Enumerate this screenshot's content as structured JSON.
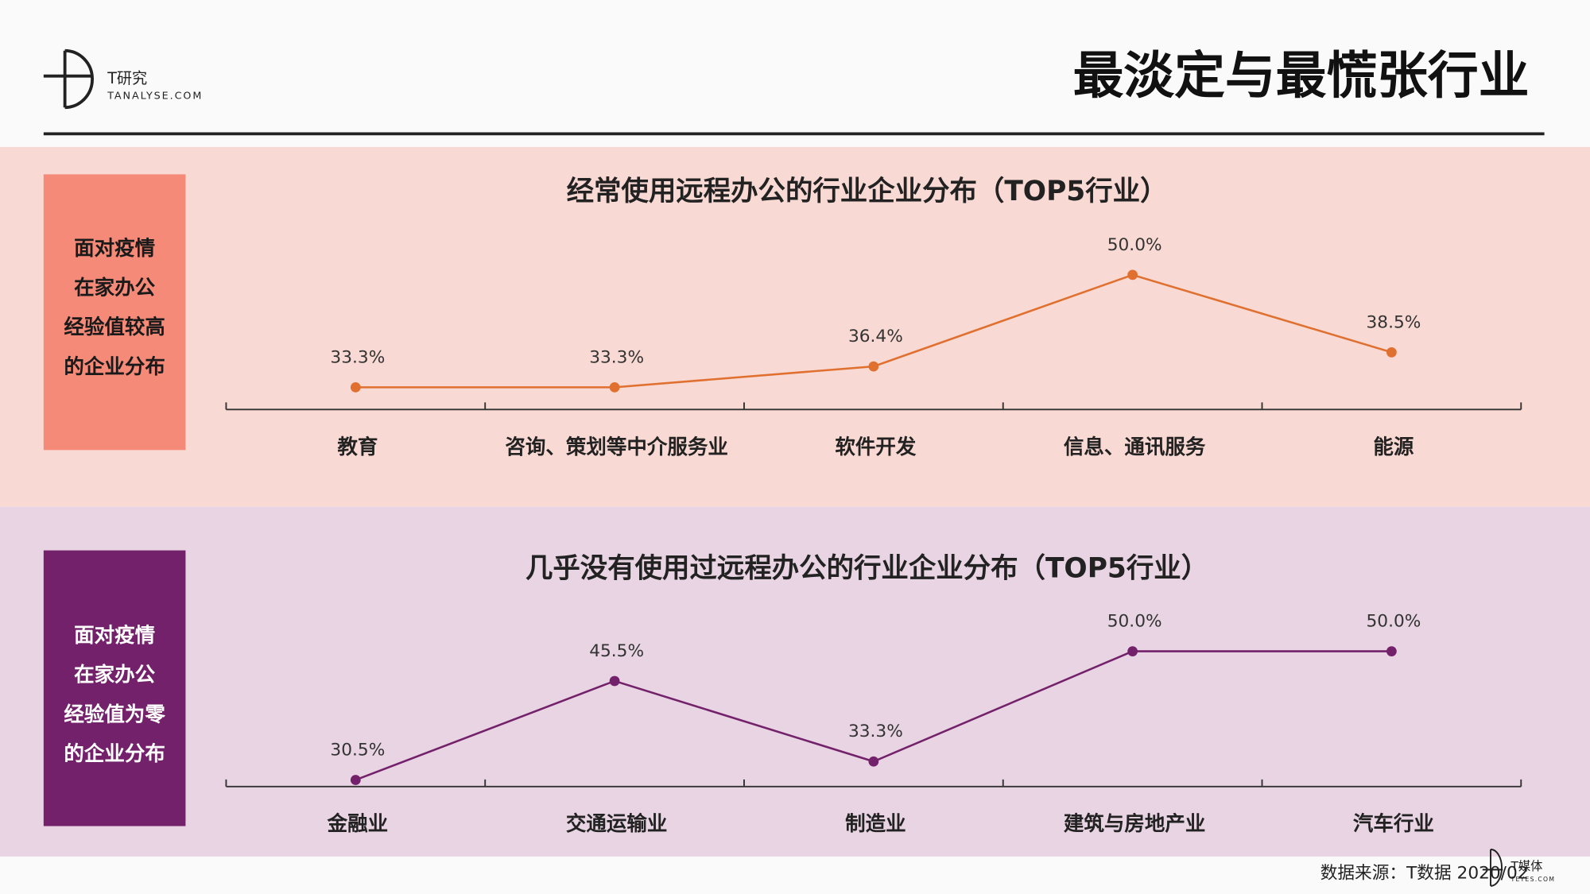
{
  "header": {
    "logo_name": "T研究",
    "logo_site": "TANALYSE.COM",
    "title": "最淡定与最慌张行业"
  },
  "panels": [
    {
      "lines": [
        "面对疫情",
        "在家办公",
        "经验值较高",
        "的企业分布"
      ]
    },
    {
      "lines": [
        "面对疫情",
        "在家办公",
        "经验值为零",
        "的企业分布"
      ]
    }
  ],
  "chart_data": [
    {
      "type": "line",
      "title": "经常使用远程办公的行业企业分布（TOP5行业）",
      "categories": [
        "教育",
        "咨询、策划等中介服务业",
        "软件开发",
        "信息、通讯服务",
        "能源"
      ],
      "values": [
        33.3,
        33.3,
        36.4,
        50.0,
        38.5
      ],
      "value_labels": [
        "33.3%",
        "33.3%",
        "36.4%",
        "50.0%",
        "38.5%"
      ],
      "color": "#e07030",
      "ylim": [
        30,
        55
      ]
    },
    {
      "type": "line",
      "title": "几乎没有使用过远程办公的行业企业分布（TOP5行业）",
      "categories": [
        "金融业",
        "交通运输业",
        "制造业",
        "建筑与房地产业",
        "汽车行业"
      ],
      "values": [
        30.5,
        45.5,
        33.3,
        50.0,
        50.0
      ],
      "value_labels": [
        "30.5%",
        "45.5%",
        "33.3%",
        "50.0%",
        "50.0%"
      ],
      "color": "#74216b",
      "ylim": [
        29.5,
        55
      ]
    }
  ],
  "footer": {
    "source": "数据来源：T数据 2020/02",
    "logo_name": "T媒体",
    "logo_site": "TEYES.COM"
  }
}
